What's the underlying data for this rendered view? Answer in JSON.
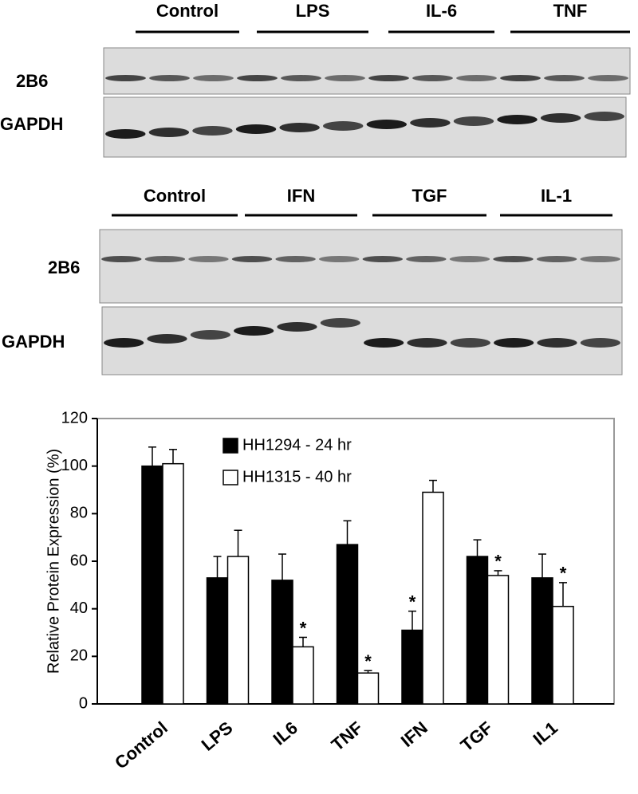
{
  "blots": [
    {
      "groups": [
        "Control",
        "LPS",
        "IL-6",
        "TNF"
      ],
      "rows": [
        "2B6",
        "GAPDH"
      ]
    },
    {
      "groups": [
        "Control",
        "IFN",
        "TGF",
        "IL-1"
      ],
      "rows": [
        "2B6",
        "GAPDH"
      ]
    }
  ],
  "chart_data": {
    "type": "bar",
    "y_label": "Relative Protein Expression (%)",
    "categories": [
      "Control",
      "LPS",
      "IL6",
      "TNF",
      "IFN",
      "TGF",
      "IL1"
    ],
    "series": [
      {
        "name": "HH1294 - 24 hr",
        "color": "#000000",
        "values": [
          100,
          53,
          52,
          67,
          31,
          62,
          53
        ],
        "errors": [
          8,
          9,
          11,
          10,
          8,
          7,
          10
        ],
        "markers": [
          null,
          null,
          null,
          null,
          "*",
          null,
          null
        ]
      },
      {
        "name": "HH1315 - 40 hr",
        "color": "#ffffff",
        "values": [
          101,
          62,
          24,
          13,
          89,
          54,
          41
        ],
        "errors": [
          6,
          11,
          4,
          1,
          5,
          2,
          10
        ],
        "markers": [
          null,
          null,
          "*",
          "*",
          null,
          "*",
          "*"
        ]
      }
    ],
    "ylim": [
      0,
      120
    ],
    "yticks": [
      0,
      20,
      40,
      60,
      80,
      100,
      120
    ],
    "grid": false
  }
}
